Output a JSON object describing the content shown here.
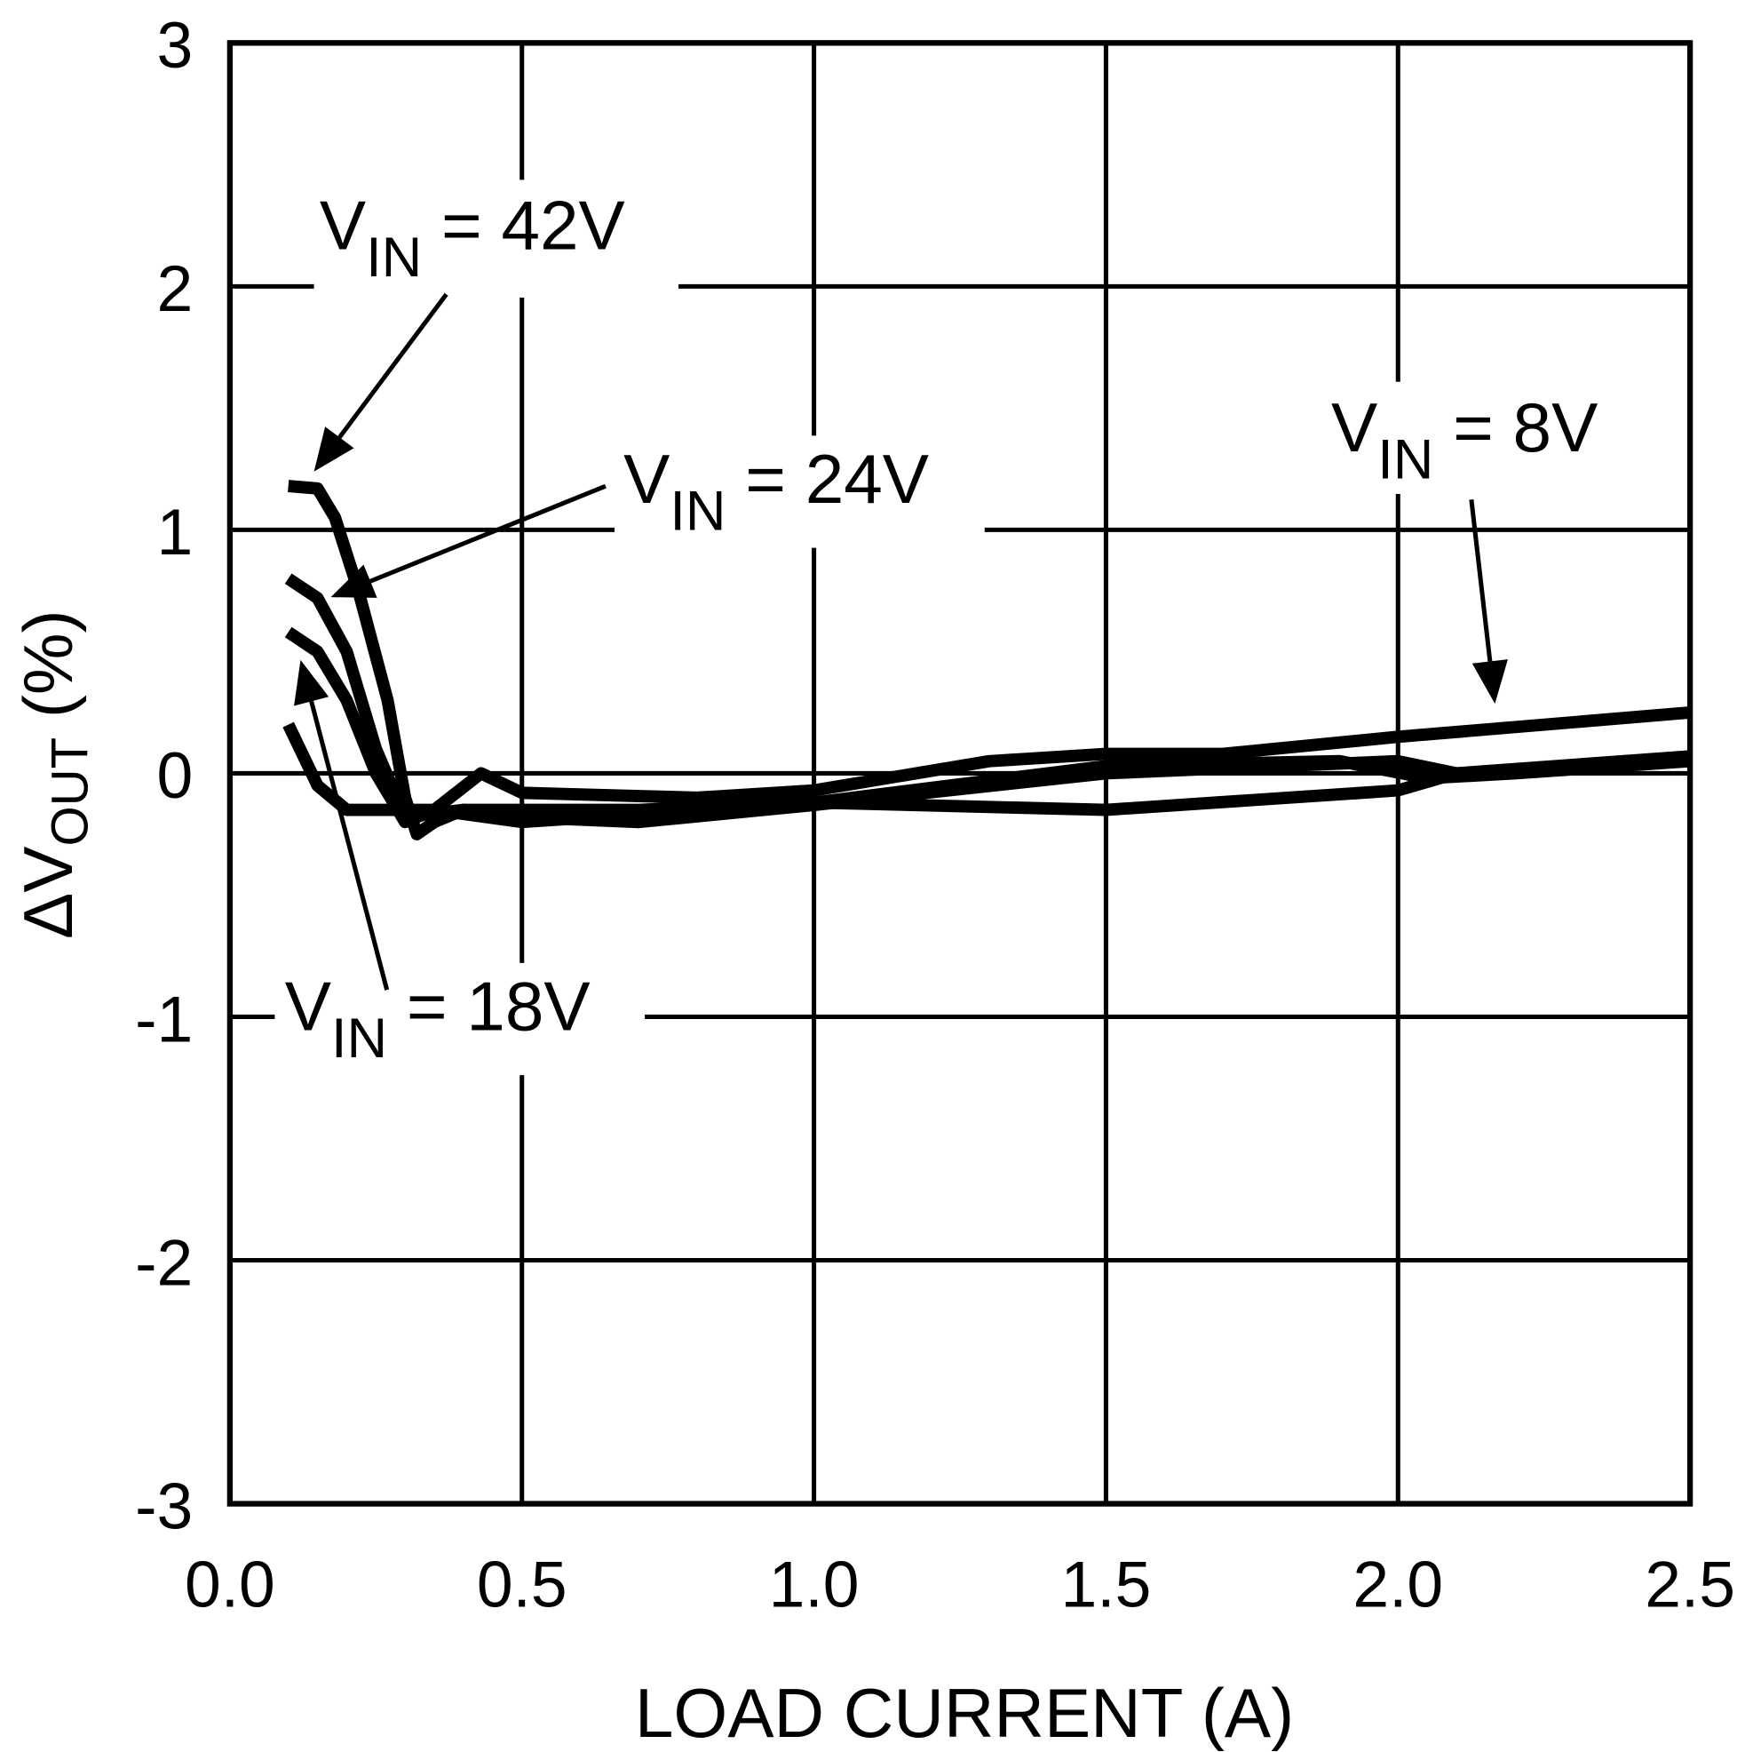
{
  "chart_data": {
    "type": "line",
    "title": "",
    "xlabel": "LOAD CURRENT (A)",
    "ylabel": {
      "prefix": "ΔV",
      "sub": "OUT",
      "suffix": " (%)"
    },
    "xlim": [
      0,
      2.5
    ],
    "ylim": [
      -3,
      3
    ],
    "xticks": [
      "0.0",
      "0.5",
      "1.0",
      "1.5",
      "2.0",
      "2.5"
    ],
    "yticks": [
      "3",
      "2",
      "1",
      "0",
      "-1",
      "-2",
      "-3"
    ],
    "grid": true,
    "color": "#000000",
    "series": [
      {
        "name": "VIN = 42V",
        "label": {
          "main": "V",
          "sub": "IN",
          "rest": " = 42V"
        },
        "x": [
          0.1,
          0.15,
          0.18,
          0.22,
          0.27,
          0.3,
          0.32,
          0.35,
          0.4,
          0.5,
          0.7,
          1.0,
          1.5,
          2.0,
          2.1,
          2.5
        ],
        "y": [
          1.18,
          1.17,
          1.05,
          0.75,
          0.3,
          -0.1,
          -0.25,
          -0.2,
          -0.15,
          -0.18,
          -0.2,
          -0.13,
          0.0,
          0.05,
          0.0,
          0.07
        ]
      },
      {
        "name": "VIN = 24V",
        "label": {
          "main": "V",
          "sub": "IN",
          "rest": " = 24V"
        },
        "x": [
          0.1,
          0.15,
          0.2,
          0.25,
          0.3,
          0.4,
          0.7,
          1.0,
          1.5,
          2.0,
          2.1,
          2.5
        ],
        "y": [
          0.8,
          0.72,
          0.5,
          0.1,
          -0.18,
          -0.15,
          -0.15,
          -0.12,
          -0.15,
          -0.07,
          0.0,
          0.05
        ]
      },
      {
        "name": "VIN = 18V",
        "label": {
          "main": "V",
          "sub": "IN",
          "rest": " = 18V"
        },
        "x": [
          0.1,
          0.15,
          0.2,
          0.25,
          0.3,
          0.35,
          0.5,
          1.0,
          1.5,
          1.9,
          2.05,
          2.2,
          2.5
        ],
        "y": [
          0.58,
          0.5,
          0.3,
          0.0,
          -0.2,
          -0.15,
          -0.2,
          -0.12,
          0.03,
          0.05,
          -0.02,
          0.0,
          0.05
        ]
      },
      {
        "name": "VIN = 8V",
        "label": {
          "main": "V",
          "sub": "IN",
          "rest": " = 8V"
        },
        "x": [
          0.1,
          0.15,
          0.2,
          0.3,
          0.35,
          0.43,
          0.5,
          0.8,
          1.0,
          1.3,
          1.5,
          1.7,
          2.0,
          2.5
        ],
        "y": [
          0.2,
          -0.05,
          -0.15,
          -0.15,
          -0.15,
          0.0,
          -0.08,
          -0.1,
          -0.07,
          0.05,
          0.08,
          0.08,
          0.15,
          0.25
        ]
      }
    ]
  }
}
